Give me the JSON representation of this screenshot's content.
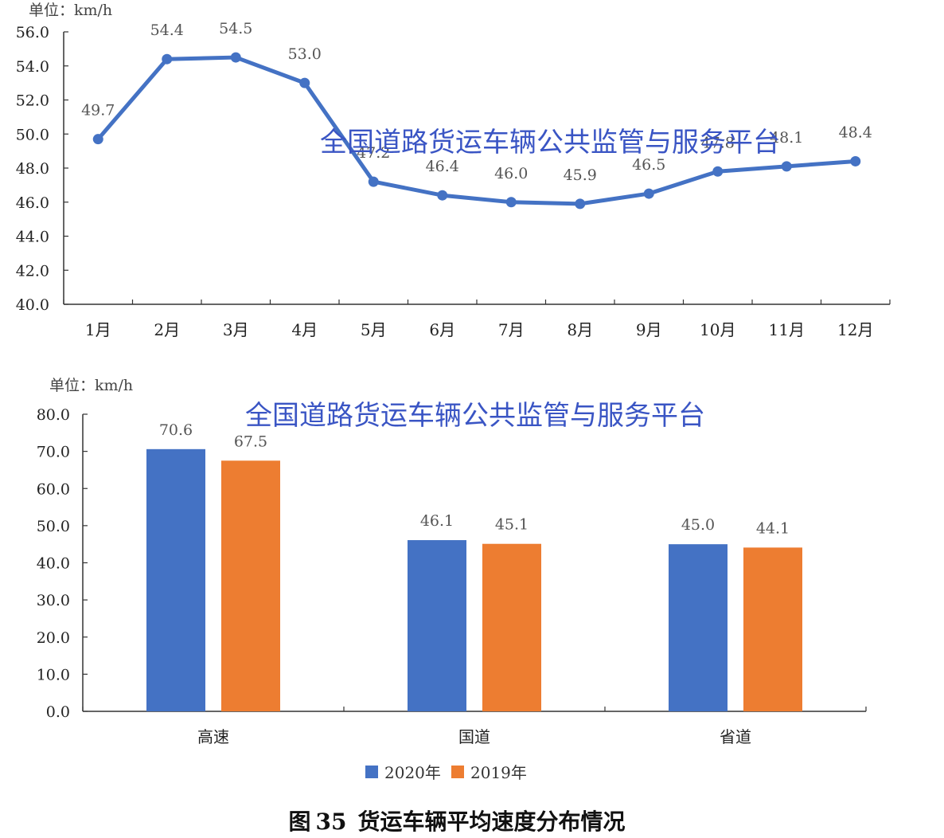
{
  "chart_data": [
    {
      "type": "line",
      "unit_label": "单位：km/h",
      "watermark": "全国道路货运车辆公共监管与服务平台",
      "categories": [
        "1月",
        "2月",
        "3月",
        "4月",
        "5月",
        "6月",
        "7月",
        "8月",
        "9月",
        "10月",
        "11月",
        "12月"
      ],
      "values": [
        49.7,
        54.4,
        54.5,
        53.0,
        47.2,
        46.4,
        46.0,
        45.9,
        46.5,
        47.8,
        48.1,
        48.4
      ],
      "data_labels": [
        "49.7",
        "54.4",
        "54.5",
        "53.0",
        "47.2",
        "46.4",
        "46.0",
        "45.9",
        "46.5",
        "47.8",
        "48.1",
        "48.4"
      ],
      "yticks": [
        "56.0",
        "54.0",
        "52.0",
        "50.0",
        "48.0",
        "46.0",
        "44.0",
        "42.0",
        "40.0"
      ],
      "ylim": [
        40,
        56
      ],
      "color": "#4472c4",
      "grid": false
    },
    {
      "type": "bar",
      "unit_label": "单位：km/h",
      "watermark": "全国道路货运车辆公共监管与服务平台",
      "categories": [
        "高速",
        "国道",
        "省道"
      ],
      "series": [
        {
          "name": "2020年",
          "values": [
            70.6,
            46.1,
            45.0
          ],
          "labels": [
            "70.6",
            "46.1",
            "45.0"
          ],
          "color": "#4472c4"
        },
        {
          "name": "2019年",
          "values": [
            67.5,
            45.1,
            44.1
          ],
          "labels": [
            "67.5",
            "45.1",
            "44.1"
          ],
          "color": "#ed7d31"
        }
      ],
      "yticks": [
        "80.0",
        "70.0",
        "60.0",
        "50.0",
        "40.0",
        "30.0",
        "20.0",
        "10.0",
        "0.0"
      ],
      "ylim": [
        0,
        80
      ],
      "legend_position": "bottom",
      "grid": false
    }
  ],
  "caption": {
    "prefix": "图",
    "number": "35",
    "text": "货运车辆平均速度分布情况"
  }
}
